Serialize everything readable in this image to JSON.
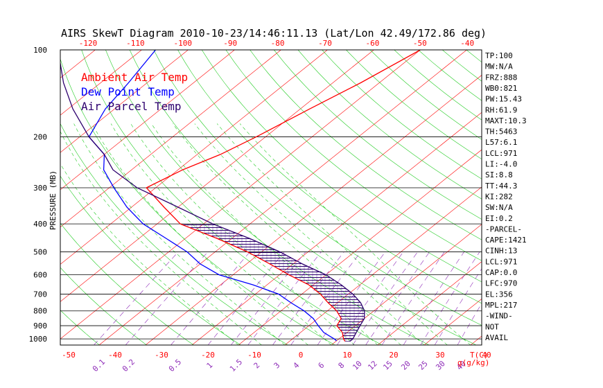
{
  "chart_data": {
    "type": "skewt",
    "title": "AIRS SkewT Diagram 2010-10-23/14:46:11.13 (Lat/Lon 42.49/172.86 deg)",
    "ylabel": "PRESSURE (MB)",
    "xlabel": "T(C)",
    "mixing_ratio_label": "g(g/kg)",
    "pressure_ticks": [
      100,
      200,
      300,
      400,
      500,
      600,
      700,
      800,
      900,
      1000
    ],
    "bottom_temp_ticks": [
      -50,
      -40,
      -30,
      -20,
      -10,
      0,
      10,
      20,
      30,
      40
    ],
    "top_temp_ticks": [
      -120,
      -110,
      -100,
      -90,
      -80,
      -70,
      -60,
      -50,
      -40
    ],
    "mixing_ratio_ticks": [
      "0.1",
      "0.2",
      "0.5",
      "1",
      "1.5",
      "2",
      "3",
      "4",
      "6",
      "8",
      "10",
      "12",
      "15",
      "20",
      "25",
      "30",
      "40"
    ],
    "legend": [
      {
        "label": "Ambient Air Temp",
        "color": "#ff0000"
      },
      {
        "label": "Dew Point Temp",
        "color": "#0000ff"
      },
      {
        "label": "Air Parcel Temp",
        "color": "#2d006e"
      }
    ],
    "series": [
      {
        "name": "Ambient Air Temp",
        "color": "#ff0000",
        "points": [
          [
            100,
            -50
          ],
          [
            130,
            -54
          ],
          [
            160,
            -58
          ],
          [
            200,
            -62
          ],
          [
            230,
            -65
          ],
          [
            260,
            -69
          ],
          [
            300,
            -72
          ],
          [
            350,
            -63
          ],
          [
            400,
            -55
          ],
          [
            450,
            -43
          ],
          [
            500,
            -33
          ],
          [
            550,
            -25
          ],
          [
            600,
            -18
          ],
          [
            650,
            -11
          ],
          [
            700,
            -6
          ],
          [
            750,
            -2
          ],
          [
            800,
            2
          ],
          [
            850,
            5
          ],
          [
            900,
            6
          ],
          [
            950,
            9
          ],
          [
            1000,
            11
          ],
          [
            1020,
            12
          ]
        ]
      },
      {
        "name": "Dew Point Temp",
        "color": "#0000ff",
        "points": [
          [
            100,
            -107
          ],
          [
            130,
            -104
          ],
          [
            160,
            -102
          ],
          [
            200,
            -98
          ],
          [
            230,
            -90
          ],
          [
            260,
            -86
          ],
          [
            300,
            -79
          ],
          [
            350,
            -71
          ],
          [
            400,
            -63
          ],
          [
            450,
            -54
          ],
          [
            500,
            -46
          ],
          [
            550,
            -40
          ],
          [
            600,
            -33
          ],
          [
            650,
            -23
          ],
          [
            700,
            -15
          ],
          [
            750,
            -10
          ],
          [
            800,
            -5
          ],
          [
            850,
            -1
          ],
          [
            900,
            2
          ],
          [
            950,
            5
          ],
          [
            1000,
            9
          ],
          [
            1015,
            10
          ]
        ]
      },
      {
        "name": "Air Parcel Temp",
        "color": "#2d006e",
        "points": [
          [
            100,
            -128
          ],
          [
            130,
            -118
          ],
          [
            160,
            -109
          ],
          [
            200,
            -98
          ],
          [
            230,
            -90
          ],
          [
            260,
            -84
          ],
          [
            300,
            -74
          ],
          [
            350,
            -60
          ],
          [
            400,
            -48
          ],
          [
            450,
            -36
          ],
          [
            500,
            -26
          ],
          [
            550,
            -18
          ],
          [
            600,
            -10
          ],
          [
            650,
            -4
          ],
          [
            700,
            1
          ],
          [
            750,
            5
          ],
          [
            800,
            8
          ],
          [
            850,
            10
          ],
          [
            900,
            11
          ],
          [
            950,
            12
          ],
          [
            1000,
            13
          ],
          [
            1020,
            13
          ]
        ]
      }
    ],
    "indices": [
      "TP:100",
      "MW:N/A",
      "FRZ:888",
      "WB0:821",
      "PW:15.43",
      "RH:61.9",
      "MAXT:10.3",
      "TH:5463",
      "L57:6.1",
      "LCL:971",
      "LI:-4.0",
      "SI:8.8",
      "TT:44.3",
      "KI:282",
      "SW:N/A",
      "EI:0.2",
      "-PARCEL-",
      "CAPE:1421",
      "CINH:13",
      "LCL:971",
      "CAP:0.0",
      "LFC:970",
      "EL:356",
      "MPL:217",
      "-WIND-",
      "NOT",
      "AVAIL"
    ]
  }
}
